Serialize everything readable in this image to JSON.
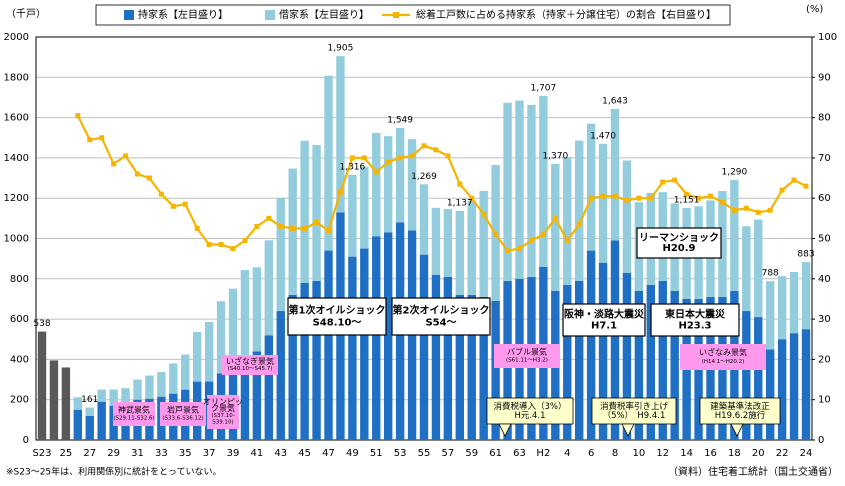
{
  "chart_data": {
    "type": "bar",
    "unit_left": "（千戸）",
    "unit_right": "(%)",
    "note": "※S23～25年は、利用関係別に統計をとっていない。",
    "source": "（資料）住宅着工統計（国土交通省）",
    "categories": [
      "S23",
      null,
      "25",
      null,
      "27",
      null,
      "29",
      null,
      "31",
      null,
      "33",
      null,
      "35",
      null,
      "37",
      null,
      "39",
      null,
      "41",
      null,
      "43",
      null,
      "45",
      null,
      "47",
      null,
      "49",
      null,
      "51",
      null,
      "53",
      null,
      "55",
      null,
      "57",
      null,
      "59",
      null,
      "61",
      null,
      "63",
      null,
      "H2",
      null,
      "4",
      null,
      "6",
      null,
      "8",
      null,
      "10",
      null,
      "12",
      null,
      "14",
      null,
      "16",
      null,
      "18",
      null,
      "20",
      null,
      "22",
      null,
      "24"
    ],
    "series": [
      {
        "color": "#595959",
        "values": [
          538,
          395,
          360,
          null,
          null,
          null,
          null,
          null,
          null,
          null,
          null,
          null,
          null,
          null,
          null,
          null,
          null,
          null,
          null,
          null,
          null,
          null,
          null,
          null,
          null,
          null,
          null,
          null,
          null,
          null,
          null,
          null,
          null,
          null,
          null,
          null,
          null,
          null,
          null,
          null,
          null,
          null,
          null,
          null,
          null,
          null,
          null,
          null,
          null,
          null,
          null,
          null,
          null,
          null,
          null,
          null,
          null,
          null,
          null,
          null,
          null,
          null,
          null,
          null,
          null
        ]
      },
      {
        "name": "持家系【左目盛り】",
        "color": "#1f6fc5",
        "values": [
          null,
          null,
          null,
          150,
          120,
          190,
          170,
          180,
          200,
          205,
          215,
          230,
          250,
          290,
          290,
          330,
          360,
          410,
          440,
          520,
          640,
          720,
          780,
          790,
          940,
          1130,
          910,
          950,
          1010,
          1030,
          1080,
          1040,
          920,
          820,
          810,
          720,
          720,
          710,
          690,
          790,
          800,
          810,
          860,
          740,
          770,
          790,
          940,
          880,
          990,
          830,
          740,
          770,
          790,
          740,
          700,
          700,
          710,
          710,
          740,
          640,
          610,
          450,
          500,
          530,
          550
        ]
      },
      {
        "name": "借家系【左目盛り】",
        "color": "#93cddd",
        "values": [
          null,
          null,
          null,
          62,
          41,
          60,
          80,
          77,
          100,
          115,
          122,
          150,
          174,
          246,
          296,
          359,
          391,
          433,
          417,
          471,
          562,
          627,
          705,
          674,
          868,
          775,
          406,
          406,
          514,
          478,
          469,
          453,
          349,
          332,
          336,
          417,
          467,
          526,
          675,
          884,
          885,
          853,
          847,
          630,
          633,
          696,
          630,
          590,
          653,
          557,
          440,
          456,
          440,
          434,
          451,
          460,
          479,
          526,
          550,
          421,
          484,
          338,
          313,
          304,
          333
        ]
      },
      {
        "name": "総着工戸数に占める持家系（持家＋分譲住宅）の割合【右目盛り】",
        "color": "#f5b400",
        "axis": "y2",
        "type": "line",
        "values": [
          null,
          null,
          null,
          80.5,
          74.5,
          75,
          68.5,
          70.5,
          66,
          65,
          61,
          58,
          58.5,
          52.5,
          48.5,
          48.5,
          47.5,
          49.5,
          53,
          55,
          53,
          52.5,
          52.5,
          54,
          52,
          61.5,
          70,
          70,
          66.5,
          69,
          70,
          70.5,
          73,
          72,
          70.5,
          63.5,
          60,
          56,
          51,
          47,
          47.5,
          49.5,
          51,
          55,
          49.5,
          53.5,
          60,
          60.5,
          60.5,
          59.5,
          60,
          60,
          64,
          64.5,
          61,
          60,
          60.5,
          59,
          57,
          57.5,
          56.5,
          57,
          62,
          64.5,
          63
        ]
      }
    ],
    "data_labels": {
      "values": [
        538,
        null,
        null,
        null,
        161,
        null,
        null,
        null,
        null,
        null,
        null,
        null,
        null,
        null,
        null,
        null,
        null,
        null,
        null,
        null,
        null,
        null,
        null,
        null,
        null,
        1905,
        1316,
        null,
        null,
        null,
        1549,
        null,
        1269,
        null,
        null,
        1137,
        null,
        null,
        null,
        null,
        null,
        null,
        1707,
        1370,
        null,
        null,
        null,
        1470,
        1643,
        null,
        null,
        null,
        null,
        null,
        1151,
        null,
        null,
        null,
        1290,
        null,
        null,
        788,
        null,
        null,
        883
      ],
      "value_labels": [
        "538",
        null,
        null,
        null,
        "161",
        null,
        null,
        null,
        null,
        null,
        null,
        null,
        null,
        null,
        null,
        null,
        null,
        null,
        null,
        null,
        null,
        null,
        null,
        null,
        null,
        "1,905",
        "1,316",
        null,
        null,
        null,
        "1,549",
        null,
        "1,269",
        null,
        null,
        "1,137",
        null,
        null,
        null,
        null,
        null,
        null,
        "1,707",
        "1,370",
        null,
        null,
        null,
        "1,470",
        "1,643",
        null,
        null,
        null,
        null,
        null,
        "1,151",
        null,
        null,
        null,
        "1,290",
        null,
        null,
        "788",
        null,
        null,
        "883"
      ]
    },
    "ylim": [
      0,
      2000
    ],
    "yticks": [
      0,
      200,
      400,
      600,
      800,
      1000,
      1200,
      1400,
      1600,
      1800,
      2000
    ],
    "y2lim": [
      0,
      100
    ],
    "y2ticks": [
      0,
      10,
      20,
      30,
      40,
      50,
      60,
      70,
      80,
      90,
      100
    ],
    "grid": true,
    "annotations": [
      {
        "lines": [
          "第1次オイルショック",
          "S48.10～"
        ],
        "fill": "#ffffff"
      },
      {
        "lines": [
          "第2次オイルショック",
          "S54～"
        ],
        "fill": "#ffffff"
      },
      {
        "lines": [
          "阪神・淡路大震災",
          "H7.1"
        ],
        "fill": "#ffffff"
      },
      {
        "lines": [
          "東日本大震災",
          "H23.3"
        ],
        "fill": "#ffffff"
      },
      {
        "lines": [
          "リーマンショック",
          "H20.9"
        ],
        "fill": "#ffffff"
      },
      {
        "lines": [
          "神武景気",
          "(S29.11-S32.6)"
        ],
        "fill": "#ff99ee"
      },
      {
        "lines": [
          "岩戸景気",
          "(S33.6-S36.12)"
        ],
        "fill": "#ff99ee"
      },
      {
        "lines": [
          "オリンピッ",
          "ク景気",
          "(S37.10-",
          "S39.10)"
        ],
        "fill": "#ff99ee"
      },
      {
        "lines": [
          "いざなぎ景気",
          "(S40.10～S45.7)"
        ],
        "fill": "#ff99ee"
      },
      {
        "lines": [
          "バブル景気",
          "(S61.11～H3.2)"
        ],
        "fill": "#ff99ee"
      },
      {
        "lines": [
          "いざなみ景気",
          "(H14.1～H20.2)"
        ],
        "fill": "#ff99ee"
      },
      {
        "lines": [
          "消費税導入（3%）",
          "H元.4.1"
        ],
        "fill": "#ffffcc"
      },
      {
        "lines": [
          "消費税率引き上げ",
          "（5%）　H9.4.1"
        ],
        "fill": "#ffffcc"
      },
      {
        "lines": [
          "建築基準法改正",
          "H19.6.2施行"
        ],
        "fill": "#ffffcc"
      }
    ]
  }
}
